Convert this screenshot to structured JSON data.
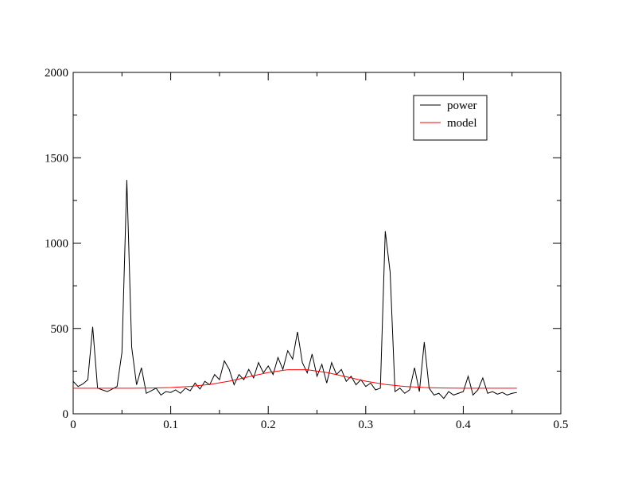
{
  "chart_data": {
    "type": "line",
    "xlim": [
      0,
      0.5
    ],
    "ylim": [
      0,
      2000
    ],
    "xticks": [
      0,
      0.1,
      0.2,
      0.3,
      0.4,
      0.5
    ],
    "yticks": [
      0,
      500,
      1000,
      1500,
      2000
    ],
    "xminorticks": [
      0.05,
      0.15,
      0.25,
      0.35,
      0.45
    ],
    "yminorticks": [
      250,
      750,
      1250,
      1750
    ],
    "legend": "upper right",
    "series": [
      {
        "name": "power",
        "color": "#000000",
        "x": [
          0,
          0.005,
          0.01,
          0.015,
          0.02,
          0.025,
          0.03,
          0.035,
          0.04,
          0.045,
          0.05,
          0.055,
          0.06,
          0.065,
          0.07,
          0.075,
          0.08,
          0.085,
          0.09,
          0.095,
          0.1,
          0.105,
          0.11,
          0.115,
          0.12,
          0.125,
          0.13,
          0.135,
          0.14,
          0.145,
          0.15,
          0.155,
          0.16,
          0.165,
          0.17,
          0.175,
          0.18,
          0.185,
          0.19,
          0.195,
          0.2,
          0.205,
          0.21,
          0.215,
          0.22,
          0.225,
          0.23,
          0.235,
          0.24,
          0.245,
          0.25,
          0.255,
          0.26,
          0.265,
          0.27,
          0.275,
          0.28,
          0.285,
          0.29,
          0.295,
          0.3,
          0.305,
          0.31,
          0.315,
          0.32,
          0.325,
          0.33,
          0.335,
          0.34,
          0.345,
          0.35,
          0.355,
          0.36,
          0.365,
          0.37,
          0.375,
          0.38,
          0.385,
          0.39,
          0.395,
          0.4,
          0.405,
          0.41,
          0.415,
          0.42,
          0.425,
          0.43,
          0.435,
          0.44,
          0.445,
          0.45,
          0.455
        ],
        "values": [
          190,
          160,
          175,
          200,
          510,
          150,
          140,
          130,
          145,
          160,
          360,
          1370,
          390,
          170,
          270,
          120,
          135,
          150,
          110,
          130,
          125,
          140,
          120,
          150,
          135,
          180,
          145,
          190,
          170,
          230,
          200,
          310,
          260,
          170,
          230,
          200,
          260,
          210,
          300,
          240,
          280,
          230,
          330,
          260,
          370,
          320,
          480,
          300,
          240,
          350,
          220,
          290,
          180,
          300,
          230,
          260,
          190,
          220,
          170,
          200,
          160,
          180,
          140,
          150,
          1070,
          830,
          130,
          150,
          120,
          140,
          270,
          130,
          420,
          150,
          110,
          120,
          90,
          130,
          110,
          120,
          130,
          220,
          110,
          140,
          210,
          120,
          130,
          115,
          125,
          110,
          120,
          125
        ]
      },
      {
        "name": "model",
        "color": "#ff0000",
        "x": [
          0,
          0.02,
          0.04,
          0.06,
          0.08,
          0.1,
          0.12,
          0.14,
          0.16,
          0.18,
          0.2,
          0.22,
          0.24,
          0.26,
          0.28,
          0.3,
          0.32,
          0.34,
          0.36,
          0.38,
          0.4,
          0.42,
          0.44,
          0.455
        ],
        "values": [
          150,
          150,
          150,
          150,
          151,
          154,
          160,
          172,
          191,
          217,
          242,
          258,
          258,
          242,
          217,
          191,
          172,
          160,
          154,
          151,
          150,
          150,
          150,
          150
        ]
      }
    ]
  }
}
